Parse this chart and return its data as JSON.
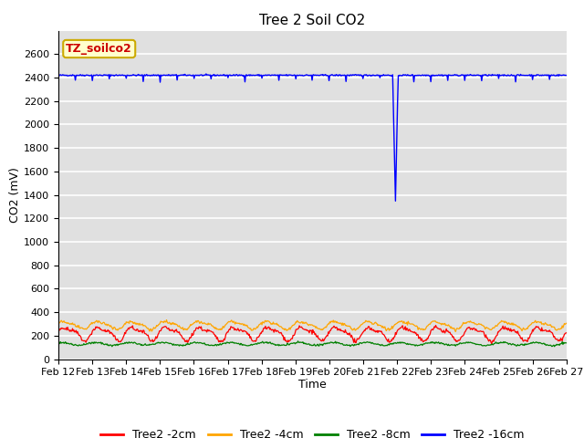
{
  "title": "Tree 2 Soil CO2",
  "xlabel": "Time",
  "ylabel": "CO2 (mV)",
  "ylim": [
    0,
    2800
  ],
  "yticks": [
    0,
    200,
    400,
    600,
    800,
    1000,
    1200,
    1400,
    1600,
    1800,
    2000,
    2200,
    2400,
    2600
  ],
  "x_start_day": 12,
  "x_end_day": 27,
  "x_tick_days": [
    12,
    13,
    14,
    15,
    16,
    17,
    18,
    19,
    20,
    21,
    22,
    23,
    24,
    25,
    26,
    27
  ],
  "x_tick_labels": [
    "Feb 12",
    "Feb 13",
    "Feb 14",
    "Feb 15",
    "Feb 16",
    "Feb 17",
    "Feb 18",
    "Feb 19",
    "Feb 20",
    "Feb 21",
    "Feb 22",
    "Feb 23",
    "Feb 24",
    "Feb 25",
    "Feb 26",
    "Feb 27"
  ],
  "series_colors": [
    "red",
    "orange",
    "green",
    "blue"
  ],
  "series_labels": [
    "Tree2 -2cm",
    "Tree2 -4cm",
    "Tree2 -8cm",
    "Tree2 -16cm"
  ],
  "annotation_label": "TZ_soilco2",
  "annotation_color": "#cc0000",
  "annotation_bg": "#ffffcc",
  "annotation_edge": "#ccaa00",
  "background_color": "#e0e0e0",
  "grid_color": "white",
  "blue_base": 2420,
  "blue_dip_x": 21.95,
  "blue_dip_y": 1330,
  "red_base": 220,
  "orange_base": 290,
  "green_base": 130,
  "title_fontsize": 11,
  "tick_fontsize": 8,
  "axis_label_fontsize": 9,
  "legend_fontsize": 9
}
